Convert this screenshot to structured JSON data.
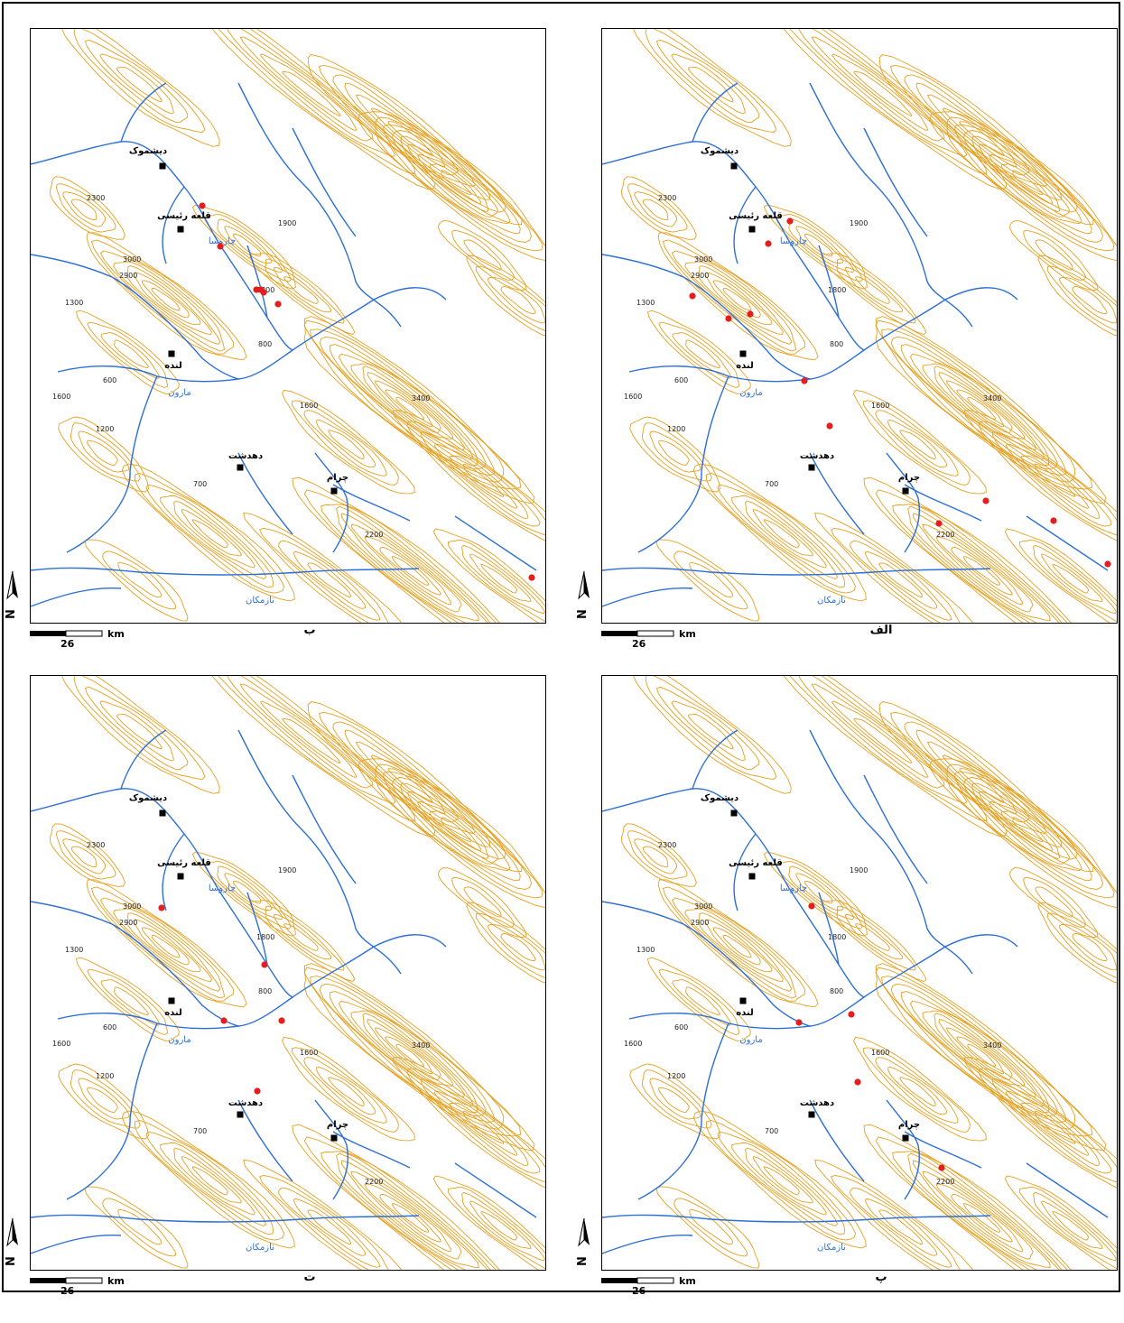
{
  "common": {
    "scale_value": "26",
    "scale_unit": "km",
    "north_label": "N",
    "contour_color": "#e5a01f",
    "river_color": "#2d6fd6",
    "settlement_color": "#000000",
    "site_color": "#e41e1e"
  },
  "labels": {
    "dishmuk": "دیشموک",
    "qale_raisi": "قلعه رئیسی",
    "charusa": "چاروسا",
    "landeh": "لنده",
    "marun": "مارون",
    "dehdasht": "دهدشت",
    "charam": "چرام",
    "nazmakan": "نازمکان"
  },
  "elevations": [
    "2300",
    "3000",
    "2900",
    "1300",
    "1800",
    "800",
    "600",
    "1600",
    "1200",
    "1900",
    "1600",
    "3400",
    "700",
    "2200"
  ],
  "panels": [
    {
      "id": "alef",
      "caption": "الف",
      "sites": [
        [
          208,
          213
        ],
        [
          184,
          238
        ],
        [
          100,
          296
        ],
        [
          140,
          321
        ],
        [
          164,
          316
        ],
        [
          224,
          390
        ],
        [
          252,
          440
        ],
        [
          425,
          523
        ],
        [
          373,
          548
        ],
        [
          500,
          545
        ],
        [
          560,
          593
        ]
      ]
    },
    {
      "id": "be",
      "caption": "ب",
      "sites": [
        [
          190,
          196
        ],
        [
          210,
          241
        ],
        [
          250,
          289
        ],
        [
          258,
          292
        ],
        [
          255,
          289
        ],
        [
          274,
          305
        ],
        [
          555,
          608
        ]
      ]
    },
    {
      "id": "pe",
      "caption": "پ",
      "sites": [
        [
          232,
          255
        ],
        [
          218,
          384
        ],
        [
          276,
          375
        ],
        [
          283,
          450
        ],
        [
          376,
          545
        ]
      ]
    },
    {
      "id": "te",
      "caption": "ت",
      "sites": [
        [
          145,
          257
        ],
        [
          259,
          320
        ],
        [
          214,
          382
        ],
        [
          278,
          382
        ],
        [
          251,
          460
        ]
      ]
    }
  ]
}
